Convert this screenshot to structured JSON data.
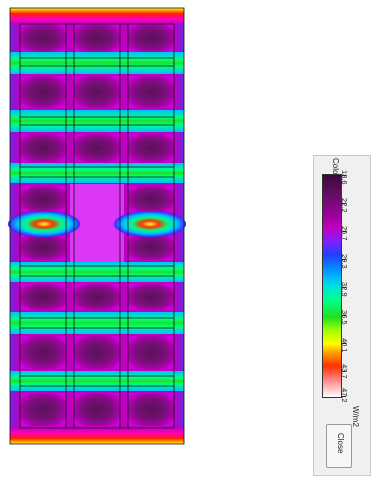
{
  "legend": {
    "title": "Color Legend",
    "ticks": [
      "18.6",
      "22.2",
      "25.7",
      "29.3",
      "32.9",
      "36.5",
      "40.1",
      "43.7",
      "47.2"
    ],
    "unit": "W/m2",
    "close_label": "Close"
  },
  "heatmap": {
    "value_min": 18.6,
    "value_max": 47.2,
    "colors": [
      "#3a0a3a",
      "#9a009a",
      "#c000c0",
      "#2040ff",
      "#00e0e0",
      "#20e020",
      "#ffff00",
      "#ff3000",
      "#ffffff"
    ]
  }
}
